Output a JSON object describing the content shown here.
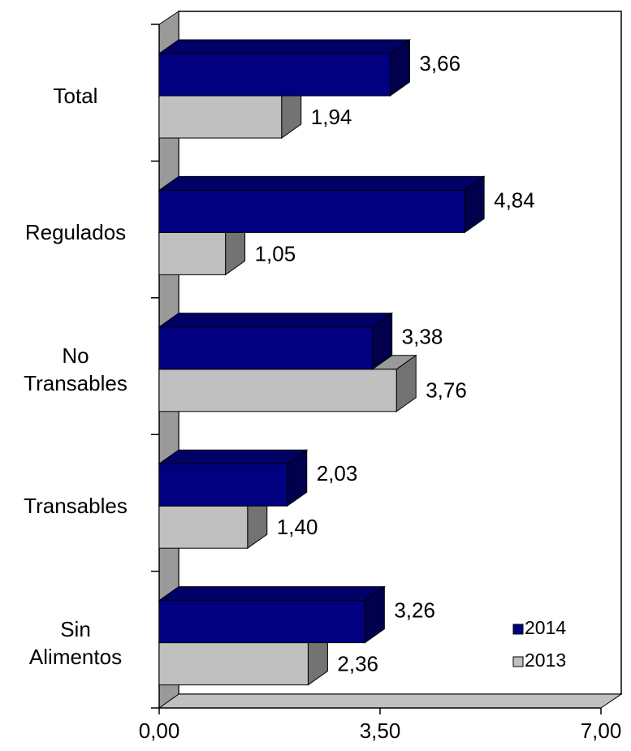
{
  "chart_data": {
    "type": "bar",
    "orientation": "horizontal",
    "three_d": true,
    "categories": [
      "Total",
      "Regulados",
      "No Transables",
      "Transables",
      "Sin Alimentos"
    ],
    "series": [
      {
        "name": "2014",
        "color": "#000080",
        "values": [
          3.66,
          4.84,
          3.38,
          2.03,
          3.26
        ],
        "value_labels": [
          "3,66",
          "4,84",
          "3,38",
          "2,03",
          "3,26"
        ]
      },
      {
        "name": "2013",
        "color": "#c0c0c0",
        "values": [
          1.94,
          1.05,
          3.76,
          1.4,
          2.36
        ],
        "value_labels": [
          "1,94",
          "1,05",
          "3,76",
          "1,40",
          "2,36"
        ]
      }
    ],
    "xlim": [
      0,
      7
    ],
    "xticks": [
      {
        "value": 0,
        "label": "0,00"
      },
      {
        "value": 3.5,
        "label": "3,50"
      },
      {
        "value": 7,
        "label": "7,00"
      }
    ],
    "legend": "bottom-right"
  }
}
